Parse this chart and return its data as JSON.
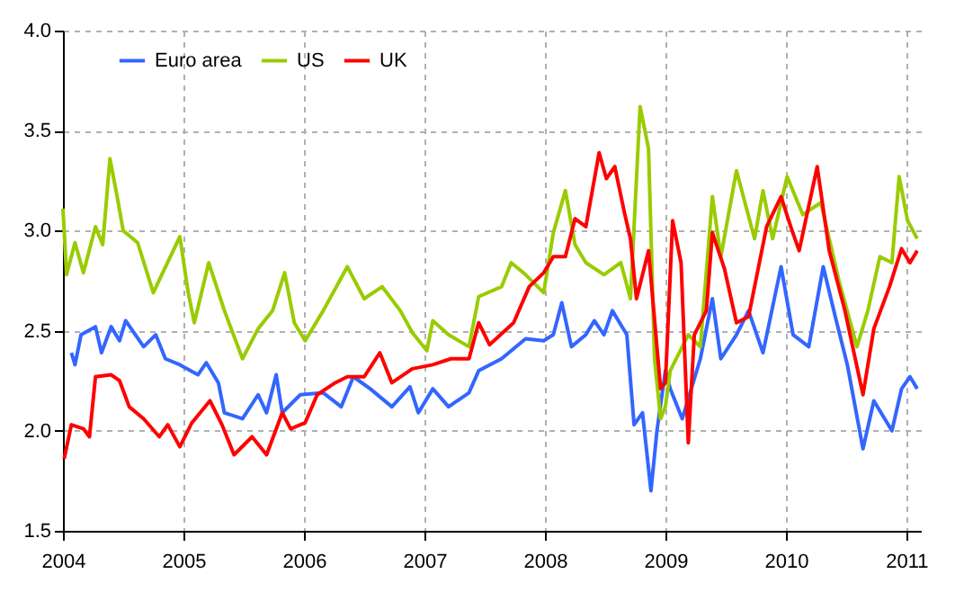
{
  "chart_data": {
    "type": "line",
    "xlim": [
      2004,
      2011.12
    ],
    "xticks": [
      2004,
      2005,
      2006,
      2007,
      2008,
      2009,
      2010,
      2011
    ],
    "ylim": [
      1.5,
      4.0
    ],
    "yticks": [
      {
        "value": 1.5,
        "label": "1.5"
      },
      {
        "value": 2,
        "label": "2.0"
      },
      {
        "value": 2.5,
        "label": "2.5"
      },
      {
        "value": 3,
        "label": "3.0"
      },
      {
        "value": 3.5,
        "label": "3.5"
      },
      {
        "value": 4,
        "label": "4.0"
      }
    ],
    "grid": true,
    "legend": "top left",
    "line_style": "solid",
    "marker": "none",
    "series": [
      {
        "name": "Euro area",
        "color": "#3366ff",
        "x": [
          2004.07,
          2004.1,
          2004.15,
          2004.27,
          2004.32,
          2004.4,
          2004.47,
          2004.52,
          2004.67,
          2004.77,
          2004.85,
          2004.97,
          2005.12,
          2005.19,
          2005.29,
          2005.34,
          2005.49,
          2005.62,
          2005.69,
          2005.77,
          2005.82,
          2005.97,
          2006.16,
          2006.31,
          2006.41,
          2006.55,
          2006.73,
          2006.88,
          2006.95,
          2007.07,
          2007.2,
          2007.37,
          2007.45,
          2007.64,
          2007.84,
          2007.99,
          2008.07,
          2008.14,
          2008.22,
          2008.34,
          2008.41,
          2008.49,
          2008.56,
          2008.68,
          2008.74,
          2008.81,
          2008.88,
          2008.93,
          2009.0,
          2009.04,
          2009.14,
          2009.29,
          2009.39,
          2009.46,
          2009.59,
          2009.69,
          2009.81,
          2009.96,
          2010.06,
          2010.19,
          2010.31,
          2010.41,
          2010.51,
          2010.64,
          2010.73,
          2010.88,
          2010.96,
          2011.03,
          2011.09
        ],
        "values": [
          2.39,
          2.33,
          2.48,
          2.52,
          2.39,
          2.52,
          2.45,
          2.55,
          2.42,
          2.48,
          2.36,
          2.33,
          2.28,
          2.34,
          2.24,
          2.09,
          2.06,
          2.18,
          2.09,
          2.28,
          2.09,
          2.18,
          2.19,
          2.12,
          2.27,
          2.21,
          2.12,
          2.22,
          2.09,
          2.21,
          2.12,
          2.19,
          2.3,
          2.36,
          2.46,
          2.45,
          2.48,
          2.64,
          2.42,
          2.48,
          2.55,
          2.48,
          2.6,
          2.48,
          2.03,
          2.09,
          1.7,
          2.0,
          2.3,
          2.21,
          2.06,
          2.36,
          2.66,
          2.36,
          2.48,
          2.6,
          2.39,
          2.82,
          2.48,
          2.42,
          2.82,
          2.57,
          2.33,
          1.91,
          2.15,
          2.0,
          2.21,
          2.27,
          2.21
        ]
      },
      {
        "name": "US",
        "color": "#99cc00",
        "x": [
          2004.0,
          2004.03,
          2004.1,
          2004.17,
          2004.27,
          2004.33,
          2004.39,
          2004.45,
          2004.5,
          2004.62,
          2004.75,
          2004.82,
          2004.97,
          2005.04,
          2005.09,
          2005.21,
          2005.34,
          2005.49,
          2005.62,
          2005.74,
          2005.84,
          2005.92,
          2006.01,
          2006.16,
          2006.36,
          2006.5,
          2006.65,
          2006.8,
          2006.9,
          2007.02,
          2007.07,
          2007.2,
          2007.37,
          2007.45,
          2007.64,
          2007.72,
          2007.84,
          2007.99,
          2008.07,
          2008.17,
          2008.25,
          2008.34,
          2008.49,
          2008.63,
          2008.71,
          2008.79,
          2008.86,
          2008.91,
          2008.96,
          2009.0,
          2009.04,
          2009.19,
          2009.29,
          2009.39,
          2009.46,
          2009.59,
          2009.74,
          2009.81,
          2009.89,
          2010.01,
          2010.14,
          2010.29,
          2010.44,
          2010.59,
          2010.68,
          2010.78,
          2010.88,
          2010.94,
          2011.01,
          2011.09
        ],
        "values": [
          3.11,
          2.78,
          2.94,
          2.79,
          3.02,
          2.93,
          3.36,
          3.17,
          3.0,
          2.94,
          2.69,
          2.78,
          2.97,
          2.69,
          2.54,
          2.84,
          2.6,
          2.36,
          2.51,
          2.6,
          2.79,
          2.54,
          2.45,
          2.6,
          2.82,
          2.66,
          2.72,
          2.6,
          2.49,
          2.4,
          2.55,
          2.48,
          2.42,
          2.67,
          2.72,
          2.84,
          2.78,
          2.69,
          2.99,
          3.2,
          2.93,
          2.84,
          2.78,
          2.84,
          2.66,
          3.62,
          3.41,
          2.36,
          2.06,
          2.12,
          2.3,
          2.48,
          2.42,
          3.17,
          2.87,
          3.3,
          2.96,
          3.2,
          2.96,
          3.27,
          3.08,
          3.14,
          2.75,
          2.42,
          2.6,
          2.87,
          2.84,
          3.27,
          3.05,
          2.96
        ]
      },
      {
        "name": "UK",
        "color": "#ff0000",
        "x": [
          2004.01,
          2004.07,
          2004.17,
          2004.22,
          2004.27,
          2004.4,
          2004.47,
          2004.55,
          2004.67,
          2004.8,
          2004.87,
          2004.97,
          2005.07,
          2005.22,
          2005.32,
          2005.42,
          2005.57,
          2005.69,
          2005.82,
          2005.89,
          2006.01,
          2006.11,
          2006.26,
          2006.36,
          2006.5,
          2006.63,
          2006.73,
          2006.9,
          2007.07,
          2007.22,
          2007.37,
          2007.45,
          2007.54,
          2007.74,
          2007.87,
          2007.99,
          2008.07,
          2008.17,
          2008.25,
          2008.34,
          2008.45,
          2008.51,
          2008.58,
          2008.66,
          2008.71,
          2008.76,
          2008.86,
          2008.96,
          2009.0,
          2009.06,
          2009.13,
          2009.19,
          2009.24,
          2009.34,
          2009.39,
          2009.49,
          2009.59,
          2009.69,
          2009.84,
          2009.96,
          2010.04,
          2010.11,
          2010.26,
          2010.36,
          2010.49,
          2010.64,
          2010.73,
          2010.86,
          2010.96,
          2011.03,
          2011.09
        ],
        "values": [
          1.86,
          2.03,
          2.01,
          1.97,
          2.27,
          2.28,
          2.25,
          2.12,
          2.06,
          1.97,
          2.03,
          1.92,
          2.04,
          2.15,
          2.03,
          1.88,
          1.97,
          1.88,
          2.09,
          2.01,
          2.04,
          2.18,
          2.24,
          2.27,
          2.27,
          2.39,
          2.24,
          2.31,
          2.33,
          2.36,
          2.36,
          2.54,
          2.43,
          2.54,
          2.72,
          2.79,
          2.87,
          2.87,
          3.06,
          3.02,
          3.39,
          3.26,
          3.32,
          3.09,
          2.96,
          2.66,
          2.9,
          2.21,
          2.24,
          3.05,
          2.84,
          1.94,
          2.48,
          2.6,
          2.99,
          2.81,
          2.54,
          2.57,
          3.02,
          3.17,
          3.02,
          2.9,
          3.32,
          2.9,
          2.6,
          2.18,
          2.51,
          2.72,
          2.91,
          2.84,
          2.9
        ]
      }
    ]
  }
}
